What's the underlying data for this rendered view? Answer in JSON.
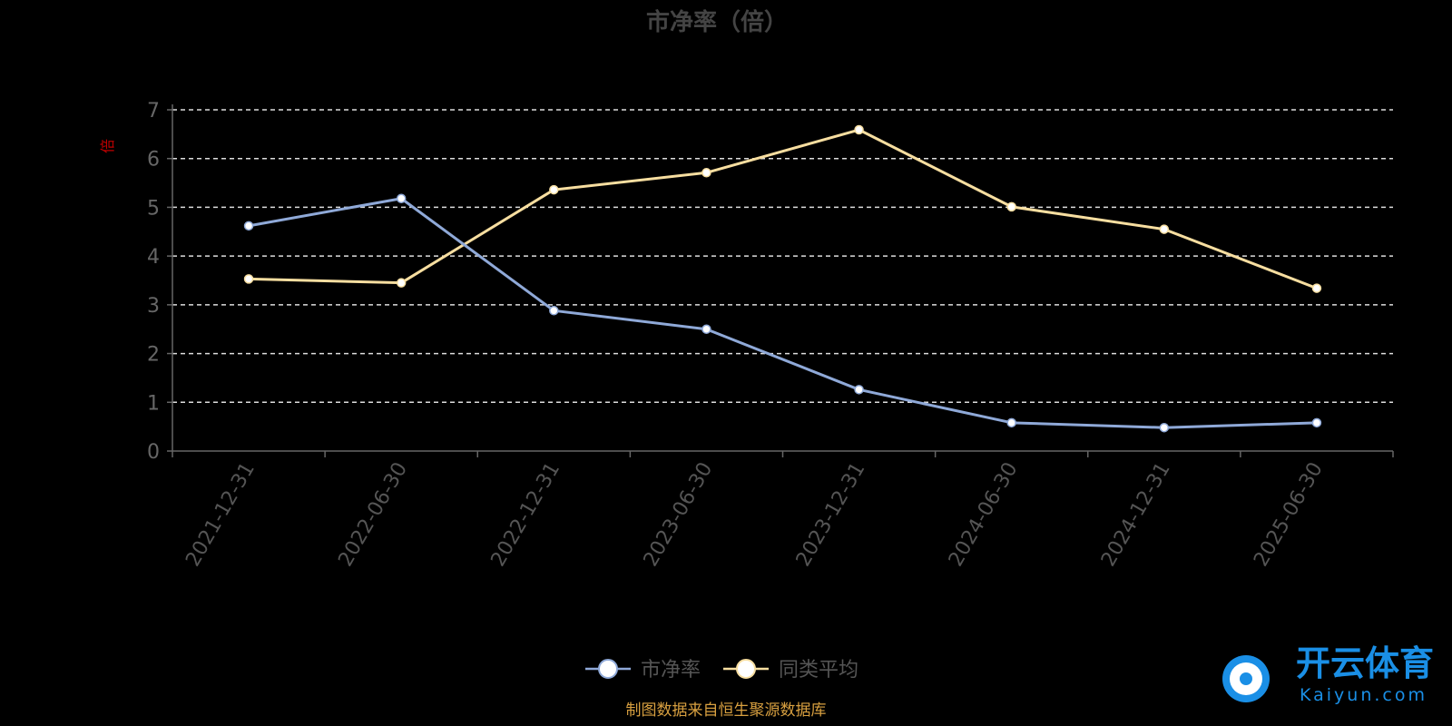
{
  "chart_data": {
    "type": "line",
    "title": "市净率（倍）",
    "ylabel": "倍",
    "categories": [
      "2021-12-31",
      "2022-06-30",
      "2022-12-31",
      "2023-06-30",
      "2023-12-31",
      "2024-06-30",
      "2024-12-31",
      "2025-06-30"
    ],
    "ylim": [
      0,
      7
    ],
    "yticks": [
      "0",
      "1",
      "2",
      "3",
      "4",
      "5",
      "6",
      "7"
    ],
    "grid": true,
    "legend_position": "bottom-center",
    "series": [
      {
        "name": "市净率",
        "color": "#8fa9d8",
        "values": [
          4.62,
          5.18,
          2.88,
          2.5,
          1.26,
          0.58,
          0.48,
          0.58
        ]
      },
      {
        "name": "同类平均",
        "color": "#f7dea0",
        "values": [
          3.53,
          3.45,
          5.36,
          5.71,
          6.59,
          5.01,
          4.55,
          3.34
        ]
      }
    ],
    "source_note": "制图数据来自恒生聚源数据库"
  },
  "watermark": {
    "cn": "开云体育",
    "en": "Kaiyun.com"
  }
}
